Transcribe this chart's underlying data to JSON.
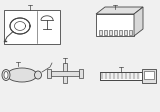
{
  "bg_color": "#f0f0f0",
  "line_color": "#555555",
  "dark_color": "#444444",
  "box_bg": "#e0e0e0",
  "face_color": "#d8d8d8",
  "white": "#ffffff",
  "figsize": [
    1.6,
    1.12
  ],
  "dpi": 100
}
